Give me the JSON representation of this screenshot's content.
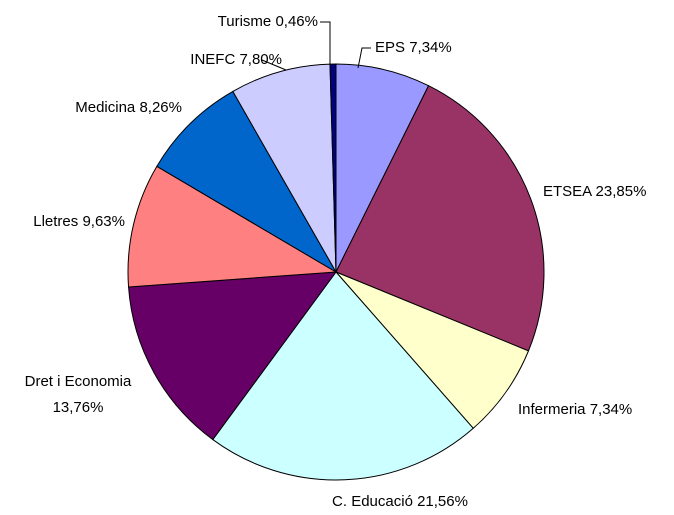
{
  "chart_data": {
    "type": "pie",
    "categories": [
      "EPS",
      "ETSEA",
      "Infermeria",
      "C. Educació",
      "Dret i Economia",
      "Lletres",
      "Medicina",
      "INEFC",
      "Turisme"
    ],
    "values": [
      7.34,
      23.85,
      7.34,
      21.56,
      13.76,
      9.63,
      8.26,
      7.8,
      0.46
    ],
    "value_labels": [
      "7,34%",
      "23,85%",
      "7,34%",
      "21,56%",
      "13,76%",
      "9,63%",
      "8,26%",
      "7,80%",
      "0,46%"
    ],
    "colors": [
      "#9999ff",
      "#993366",
      "#ffffcc",
      "#ccffff",
      "#660066",
      "#ff8080",
      "#0066cc",
      "#ccccff",
      "#000080"
    ]
  }
}
